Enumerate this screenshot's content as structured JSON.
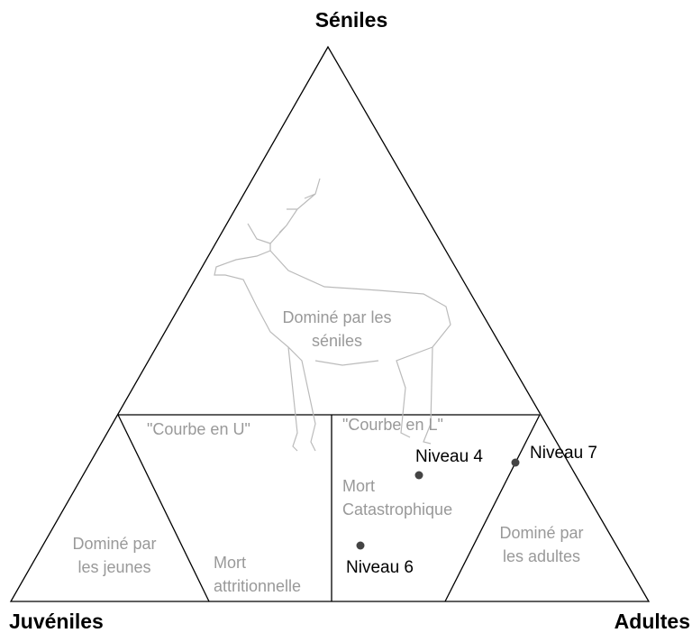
{
  "corners": {
    "top": "Séniles",
    "left": "Juvéniles",
    "right": "Adultes"
  },
  "regions": [
    {
      "lines": [
        "Dominé par les",
        "séniles"
      ]
    },
    {
      "lines": [
        "\"Courbe en U\""
      ]
    },
    {
      "lines": [
        "\"Courbe en L\""
      ]
    },
    {
      "lines": [
        "Dominé par",
        "les jeunes"
      ]
    },
    {
      "lines": [
        "Mort",
        "attritionnelle"
      ]
    },
    {
      "lines": [
        "Mort",
        "Catastrophique"
      ]
    },
    {
      "lines": [
        "Dominé par",
        "les adultes"
      ]
    }
  ],
  "points": [
    {
      "label": "Niveau 4"
    },
    {
      "label": "Niveau 7"
    },
    {
      "label": "Niveau 6"
    }
  ]
}
